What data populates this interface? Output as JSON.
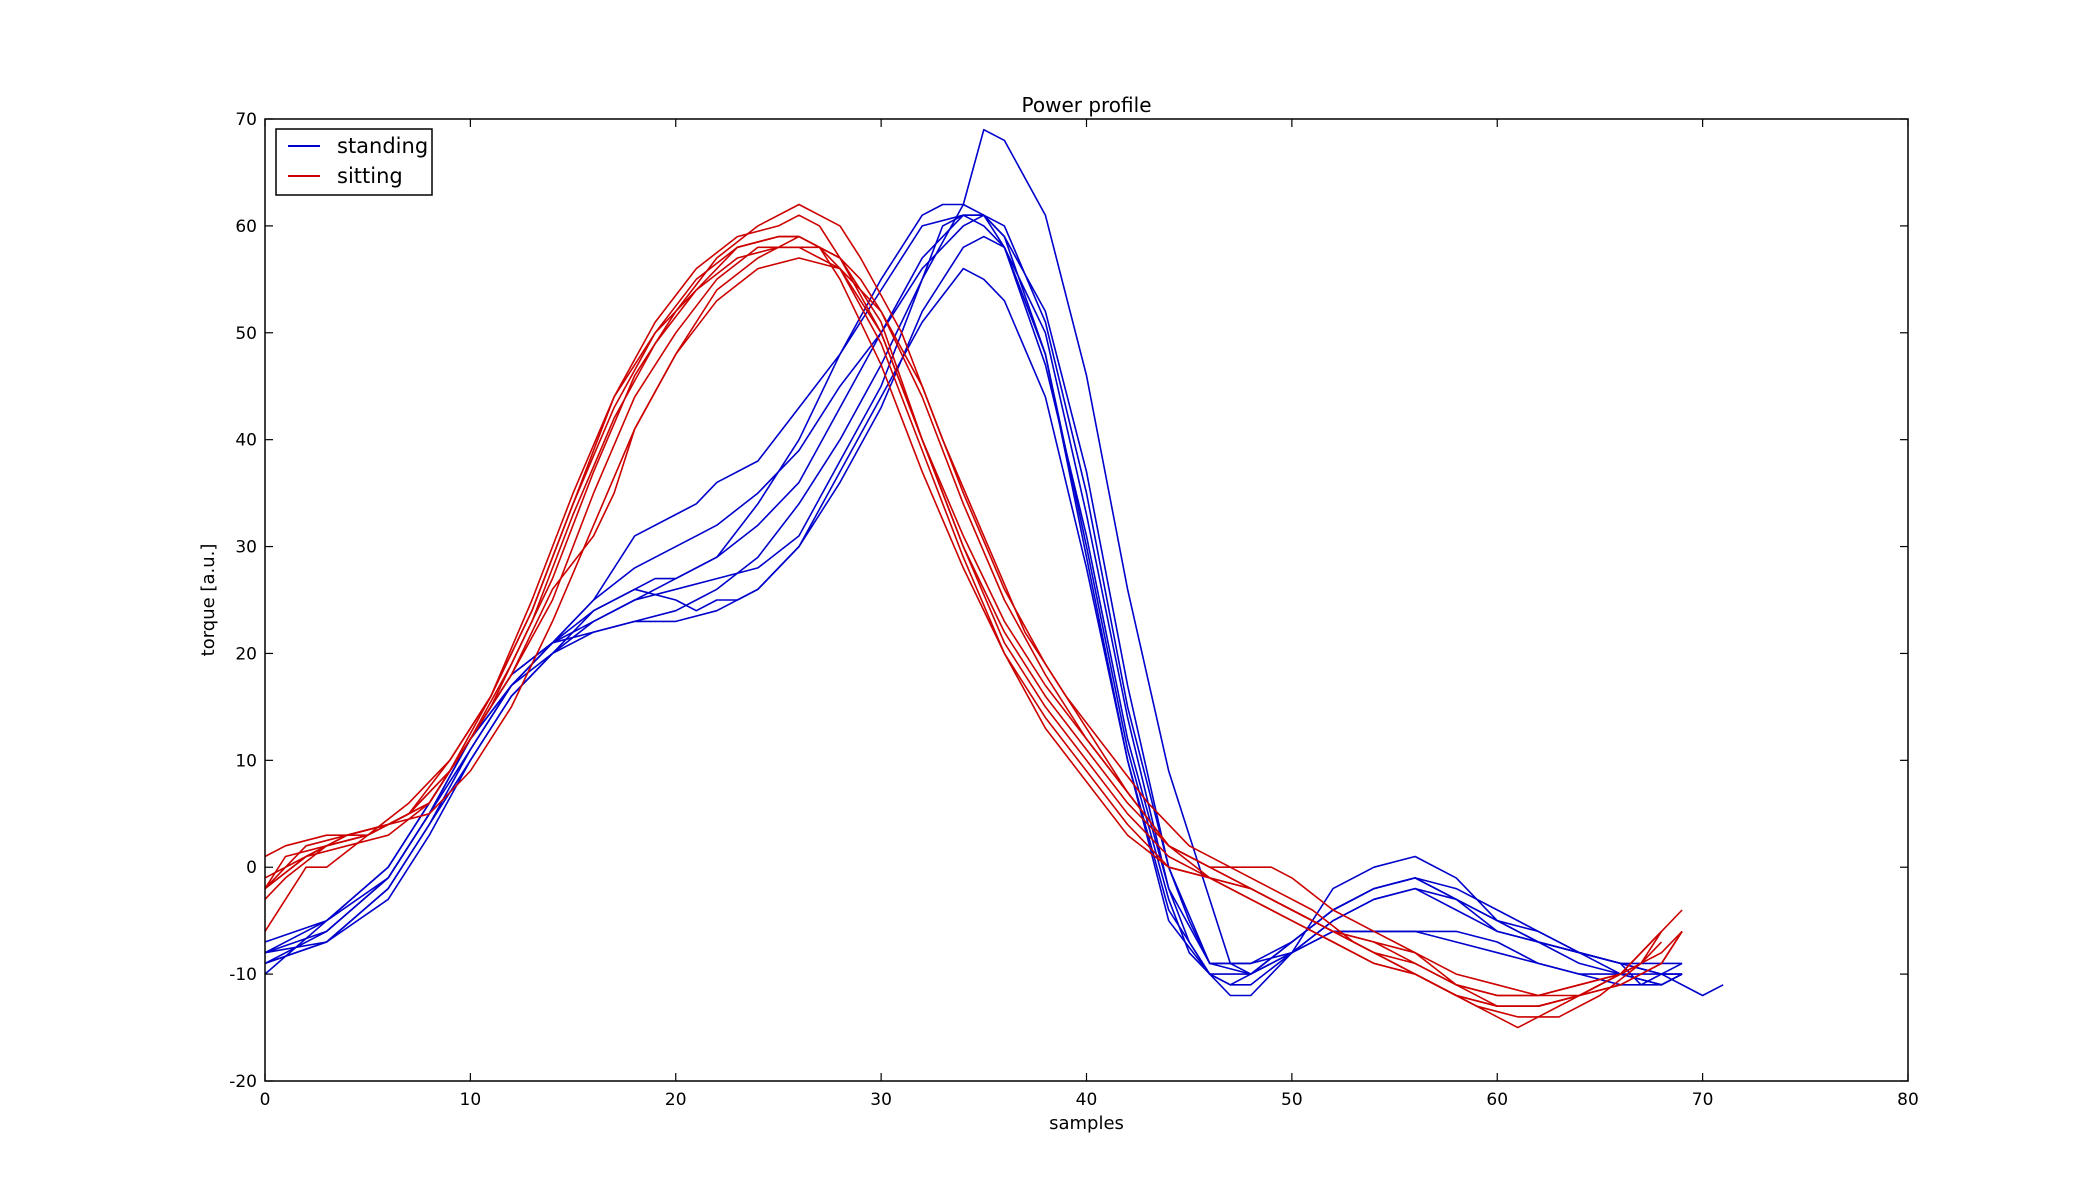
{
  "chart_data": {
    "type": "line",
    "title": "Power profile",
    "xlabel": "samples",
    "ylabel": "torque [a.u.]",
    "xlim": [
      0,
      80
    ],
    "ylim": [
      -20,
      70
    ],
    "xticks": [
      0,
      10,
      20,
      30,
      40,
      50,
      60,
      70,
      80
    ],
    "yticks": [
      -20,
      -10,
      0,
      10,
      20,
      30,
      40,
      50,
      60,
      70
    ],
    "grid": false,
    "legend": {
      "placement": "top-left",
      "entries": [
        {
          "label": "standing",
          "color": "#0000cc"
        },
        {
          "label": "sitting",
          "color": "#cc0000"
        }
      ]
    },
    "series": [
      {
        "group": "standing",
        "color": "#0000cc",
        "x": [
          0,
          3,
          6,
          8,
          10,
          12,
          14,
          16,
          18,
          20,
          22,
          24,
          26,
          28,
          30,
          32,
          34,
          35,
          36,
          38,
          40,
          42,
          44,
          46,
          47,
          48,
          50,
          52,
          54,
          56,
          58,
          60,
          62,
          64,
          66,
          68,
          70,
          71
        ],
        "y": [
          -8,
          -7,
          -3,
          3,
          10,
          16,
          20,
          23,
          25,
          26,
          27,
          28,
          31,
          38,
          45,
          55,
          62,
          69,
          68,
          61,
          46,
          26,
          9,
          -3,
          -9,
          -10,
          -8,
          -5,
          -3,
          -2,
          -4,
          -6,
          -7,
          -8,
          -9,
          -10,
          -12,
          -11
        ]
      },
      {
        "group": "standing",
        "color": "#0000cc",
        "x": [
          0,
          3,
          6,
          8,
          10,
          12,
          14,
          16,
          18,
          20,
          22,
          24,
          26,
          28,
          30,
          32,
          34,
          35,
          36,
          38,
          40,
          42,
          44,
          45,
          46,
          47,
          48,
          50,
          52,
          54,
          56,
          58,
          60,
          62,
          64,
          66,
          68,
          69
        ],
        "y": [
          -9,
          -7,
          -2,
          4,
          11,
          17,
          21,
          22,
          23,
          23,
          24,
          26,
          30,
          36,
          43,
          52,
          58,
          59,
          58,
          50,
          33,
          14,
          -2,
          -7,
          -10,
          -11,
          -10,
          -7,
          -4,
          -2,
          -1,
          -3,
          -6,
          -7,
          -8,
          -10,
          -11,
          -10
        ]
      },
      {
        "group": "standing",
        "color": "#0000cc",
        "x": [
          0,
          3,
          6,
          8,
          10,
          12,
          14,
          16,
          18,
          20,
          21,
          22,
          24,
          26,
          28,
          30,
          32,
          33,
          34,
          35,
          36,
          38,
          40,
          42,
          44,
          45,
          46,
          47,
          48,
          50,
          52,
          54,
          56,
          58,
          60,
          62,
          64,
          66,
          67,
          68,
          69
        ],
        "y": [
          -10,
          -5,
          0,
          6,
          12,
          17,
          20,
          22,
          23,
          24,
          25,
          26,
          29,
          34,
          40,
          47,
          55,
          60,
          61,
          61,
          59,
          48,
          30,
          11,
          -3,
          -8,
          -10,
          -11,
          -11,
          -8,
          -5,
          -3,
          -2,
          -3,
          -5,
          -7,
          -8,
          -9,
          -11,
          -10,
          -9
        ]
      },
      {
        "group": "standing",
        "color": "#0000cc",
        "x": [
          0,
          3,
          6,
          8,
          10,
          12,
          14,
          16,
          18,
          19,
          20,
          22,
          24,
          26,
          28,
          30,
          32,
          33,
          34,
          35,
          36,
          38,
          40,
          42,
          44,
          46,
          47,
          48,
          50,
          52,
          54,
          56,
          58,
          60,
          62,
          64,
          66,
          68,
          69
        ],
        "y": [
          -7,
          -5,
          -1,
          5,
          12,
          18,
          21,
          24,
          26,
          27,
          27,
          29,
          34,
          40,
          48,
          55,
          61,
          62,
          62,
          61,
          58,
          48,
          29,
          10,
          -4,
          -10,
          -12,
          -12,
          -8,
          -2,
          0,
          1,
          -1,
          -5,
          -7,
          -9,
          -10,
          -11,
          -10
        ]
      },
      {
        "group": "standing",
        "color": "#0000cc",
        "x": [
          0,
          3,
          6,
          8,
          10,
          12,
          14,
          16,
          18,
          20,
          21,
          22,
          23,
          24,
          26,
          28,
          30,
          32,
          34,
          35,
          36,
          38,
          40,
          42,
          44,
          46,
          48,
          50,
          52,
          54,
          56,
          58,
          60,
          62,
          64,
          66,
          68,
          69
        ],
        "y": [
          -9,
          -7,
          -2,
          4,
          10,
          16,
          20,
          24,
          26,
          25,
          24,
          25,
          25,
          26,
          30,
          37,
          44,
          51,
          56,
          55,
          53,
          44,
          28,
          10,
          -5,
          -10,
          -10,
          -8,
          -6,
          -6,
          -6,
          -7,
          -8,
          -9,
          -10,
          -10,
          -10,
          -10
        ]
      },
      {
        "group": "standing",
        "color": "#0000cc",
        "x": [
          0,
          3,
          6,
          8,
          10,
          12,
          14,
          16,
          18,
          20,
          22,
          24,
          26,
          28,
          30,
          32,
          34,
          35,
          36,
          38,
          40,
          42,
          44,
          45,
          46,
          48,
          50,
          52,
          54,
          56,
          58,
          60,
          62,
          64,
          66,
          68,
          69
        ],
        "y": [
          -8,
          -6,
          -1,
          5,
          11,
          17,
          21,
          23,
          25,
          27,
          29,
          32,
          36,
          43,
          50,
          57,
          61,
          61,
          59,
          52,
          37,
          17,
          0,
          -5,
          -9,
          -9,
          -8,
          -6,
          -6,
          -6,
          -6,
          -7,
          -9,
          -10,
          -11,
          -11,
          -10
        ]
      },
      {
        "group": "standing",
        "color": "#0000cc",
        "x": [
          0,
          3,
          6,
          8,
          10,
          12,
          14,
          16,
          18,
          20,
          21,
          22,
          24,
          26,
          28,
          30,
          32,
          34,
          35,
          36,
          38,
          40,
          42,
          44,
          46,
          48,
          50,
          52,
          54,
          56,
          58,
          60,
          62,
          64,
          66,
          68,
          69
        ],
        "y": [
          -8,
          -5,
          0,
          6,
          12,
          18,
          21,
          25,
          28,
          30,
          31,
          32,
          35,
          39,
          45,
          50,
          56,
          60,
          61,
          60,
          51,
          35,
          15,
          0,
          -9,
          -10,
          -7,
          -4,
          -2,
          -1,
          -2,
          -4,
          -6,
          -8,
          -9,
          -9,
          -9
        ]
      },
      {
        "group": "standing",
        "color": "#0000cc",
        "x": [
          0,
          3,
          6,
          8,
          10,
          12,
          14,
          16,
          18,
          20,
          21,
          22,
          24,
          26,
          28,
          30,
          32,
          34,
          35,
          36,
          38,
          40,
          42,
          44,
          46,
          48,
          50,
          52,
          54,
          56,
          58,
          60,
          62,
          64,
          66,
          68,
          69
        ],
        "y": [
          -9,
          -6,
          -1,
          5,
          12,
          17,
          21,
          25,
          31,
          33,
          34,
          36,
          38,
          43,
          48,
          54,
          60,
          61,
          60,
          58,
          47,
          31,
          12,
          -2,
          -9,
          -9,
          -7,
          -4,
          -2,
          -1,
          -3,
          -5,
          -6,
          -8,
          -9,
          -10,
          -10
        ]
      },
      {
        "group": "sitting",
        "color": "#cc0000",
        "x": [
          0,
          1,
          3,
          5,
          7,
          9,
          11,
          13,
          15,
          17,
          19,
          21,
          23,
          25,
          26,
          27,
          28,
          30,
          32,
          34,
          36,
          38,
          40,
          42,
          44,
          46,
          48,
          50,
          52,
          54,
          56,
          58,
          60,
          62,
          64,
          66,
          68,
          69
        ],
        "y": [
          -2,
          1,
          2,
          3,
          5,
          9,
          15,
          23,
          33,
          42,
          49,
          54,
          58,
          59,
          59,
          58,
          56,
          49,
          39,
          29,
          20,
          13,
          8,
          3,
          0,
          -1,
          -3,
          -5,
          -7,
          -9,
          -10,
          -12,
          -13,
          -13,
          -12,
          -10,
          -8,
          -6
        ]
      },
      {
        "group": "sitting",
        "color": "#cc0000",
        "x": [
          0,
          1,
          3,
          5,
          7,
          9,
          11,
          13,
          15,
          17,
          19,
          21,
          23,
          25,
          26,
          27,
          28,
          30,
          32,
          34,
          36,
          38,
          40,
          42,
          44,
          46,
          48,
          50,
          52,
          54,
          56,
          58,
          60,
          62,
          64,
          66,
          68,
          69
        ],
        "y": [
          1,
          2,
          3,
          3,
          5,
          9,
          16,
          24,
          34,
          43,
          50,
          55,
          58,
          59,
          59,
          58,
          55,
          47,
          37,
          28,
          20,
          14,
          9,
          4,
          0,
          -1,
          -2,
          -4,
          -6,
          -7,
          -9,
          -11,
          -12,
          -12,
          -12,
          -11,
          -9,
          -6
        ]
      },
      {
        "group": "sitting",
        "color": "#cc0000",
        "x": [
          0,
          1,
          3,
          5,
          7,
          9,
          11,
          13,
          15,
          17,
          19,
          21,
          23,
          25,
          27,
          28,
          30,
          32,
          34,
          36,
          38,
          40,
          42,
          44,
          46,
          48,
          50,
          52,
          54,
          56,
          58,
          60,
          62,
          64,
          66,
          68
        ],
        "y": [
          -3,
          -1,
          2,
          3,
          5,
          10,
          16,
          25,
          35,
          44,
          50,
          54,
          57,
          58,
          58,
          57,
          51,
          40,
          30,
          21,
          15,
          10,
          5,
          1,
          -1,
          -2,
          -4,
          -6,
          -8,
          -9,
          -11,
          -13,
          -13,
          -12,
          -10,
          -6
        ]
      },
      {
        "group": "sitting",
        "color": "#cc0000",
        "x": [
          0,
          2,
          3,
          5,
          7,
          9,
          11,
          13,
          15,
          17,
          19,
          21,
          23,
          25,
          26,
          27,
          28,
          30,
          32,
          34,
          36,
          38,
          40,
          42,
          44,
          46,
          48,
          50,
          52,
          54,
          56,
          58,
          60,
          62,
          64,
          66,
          68,
          69
        ],
        "y": [
          -6,
          0,
          0,
          3,
          6,
          10,
          16,
          24,
          34,
          44,
          51,
          56,
          59,
          60,
          61,
          60,
          57,
          50,
          40,
          31,
          23,
          17,
          12,
          7,
          2,
          0,
          -2,
          -4,
          -6,
          -8,
          -10,
          -12,
          -13,
          -13,
          -12,
          -11,
          -9,
          -6
        ]
      },
      {
        "group": "sitting",
        "color": "#cc0000",
        "x": [
          0,
          2,
          4,
          6,
          8,
          10,
          12,
          14,
          16,
          18,
          20,
          22,
          24,
          26,
          27,
          28,
          29,
          31,
          33,
          35,
          37,
          39,
          41,
          43,
          45,
          47,
          49,
          51,
          53,
          55,
          57,
          59,
          61,
          63,
          65,
          67,
          68,
          69
        ],
        "y": [
          -2,
          1,
          3,
          4,
          6,
          12,
          19,
          27,
          37,
          46,
          52,
          57,
          60,
          62,
          61,
          60,
          57,
          50,
          40,
          31,
          22,
          16,
          11,
          6,
          2,
          0,
          -2,
          -4,
          -7,
          -9,
          -11,
          -13,
          -14,
          -14,
          -12,
          -9,
          -6,
          -4
        ]
      },
      {
        "group": "sitting",
        "color": "#cc0000",
        "x": [
          0,
          2,
          4,
          6,
          8,
          10,
          12,
          14,
          16,
          18,
          20,
          22,
          24,
          26,
          27,
          28,
          30,
          32,
          34,
          36,
          38,
          40,
          42,
          44,
          46,
          48,
          50,
          52,
          54,
          56,
          58,
          60,
          61,
          62,
          64,
          66,
          67
        ],
        "y": [
          -2,
          2,
          3,
          4,
          6,
          12,
          18,
          25,
          35,
          44,
          50,
          55,
          58,
          58,
          57,
          56,
          50,
          40,
          30,
          22,
          16,
          11,
          6,
          2,
          -1,
          -3,
          -5,
          -7,
          -9,
          -10,
          -12,
          -14,
          -15,
          -14,
          -12,
          -10,
          -9
        ]
      },
      {
        "group": "sitting",
        "color": "#cc0000",
        "x": [
          0,
          2,
          4,
          6,
          8,
          10,
          12,
          14,
          16,
          17,
          18,
          20,
          22,
          24,
          26,
          28,
          29,
          30,
          32,
          34,
          36,
          38,
          40,
          42,
          44,
          46,
          48,
          49,
          50,
          52,
          54,
          56,
          58,
          60,
          62,
          64,
          66,
          68
        ],
        "y": [
          -1,
          1,
          2,
          3,
          6,
          12,
          18,
          26,
          31,
          35,
          41,
          48,
          54,
          57,
          59,
          57,
          55,
          52,
          45,
          35,
          26,
          19,
          13,
          7,
          2,
          0,
          0,
          0,
          -1,
          -4,
          -6,
          -8,
          -11,
          -12,
          -12,
          -11,
          -10,
          -6
        ]
      },
      {
        "group": "sitting",
        "color": "#cc0000",
        "x": [
          0,
          2,
          4,
          6,
          8,
          10,
          12,
          14,
          16,
          18,
          20,
          22,
          24,
          26,
          28,
          30,
          32,
          34,
          36,
          38,
          40,
          42,
          44,
          46,
          48,
          50,
          52,
          54,
          56,
          58,
          60,
          62,
          64,
          66,
          67,
          68
        ],
        "y": [
          -2,
          1,
          3,
          4,
          5,
          9,
          15,
          23,
          32,
          41,
          48,
          53,
          56,
          57,
          56,
          52,
          44,
          34,
          25,
          18,
          12,
          7,
          2,
          0,
          -2,
          -4,
          -6,
          -7,
          -8,
          -10,
          -11,
          -12,
          -11,
          -10,
          -9,
          -7
        ]
      }
    ]
  }
}
